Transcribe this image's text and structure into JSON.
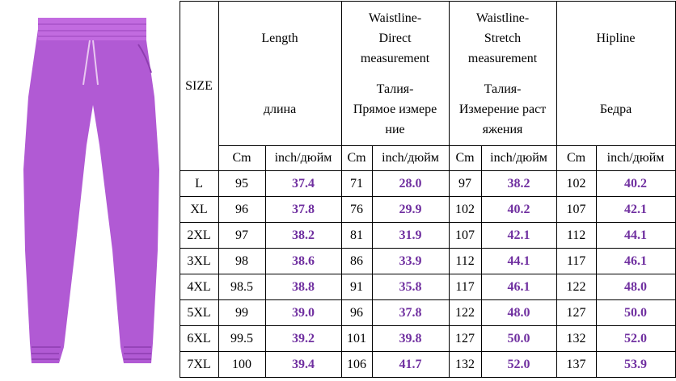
{
  "table": {
    "size_header": "SIZE",
    "groups": [
      {
        "en": [
          "Length"
        ],
        "ru": [
          "длина"
        ]
      },
      {
        "en": [
          "Waistline-",
          "Direct",
          "measurement"
        ],
        "ru": [
          "Талия-",
          "Прямое измере",
          "ние"
        ]
      },
      {
        "en": [
          "Waistline-",
          "Stretch",
          "measurement"
        ],
        "ru": [
          "Талия-",
          "Измерение раст",
          "яжения"
        ]
      },
      {
        "en": [
          "Hipline"
        ],
        "ru": [
          "Бедра"
        ]
      }
    ],
    "units": [
      "Cm",
      "inch/дюйм"
    ],
    "rows": [
      [
        "L",
        "95",
        "37.4",
        "71",
        "28.0",
        "97",
        "38.2",
        "102",
        "40.2"
      ],
      [
        "XL",
        "96",
        "37.8",
        "76",
        "29.9",
        "102",
        "40.2",
        "107",
        "42.1"
      ],
      [
        "2XL",
        "97",
        "38.2",
        "81",
        "31.9",
        "107",
        "42.1",
        "112",
        "44.1"
      ],
      [
        "3XL",
        "98",
        "38.6",
        "86",
        "33.9",
        "112",
        "44.1",
        "117",
        "46.1"
      ],
      [
        "4XL",
        "98.5",
        "38.8",
        "91",
        "35.8",
        "117",
        "46.1",
        "122",
        "48.0"
      ],
      [
        "5XL",
        "99",
        "39.0",
        "96",
        "37.8",
        "122",
        "48.0",
        "127",
        "50.0"
      ],
      [
        "6XL",
        "99.5",
        "39.2",
        "101",
        "39.8",
        "127",
        "50.0",
        "132",
        "52.0"
      ],
      [
        "7XL",
        "100",
        "39.4",
        "106",
        "41.7",
        "132",
        "52.0",
        "137",
        "53.9"
      ]
    ]
  }
}
